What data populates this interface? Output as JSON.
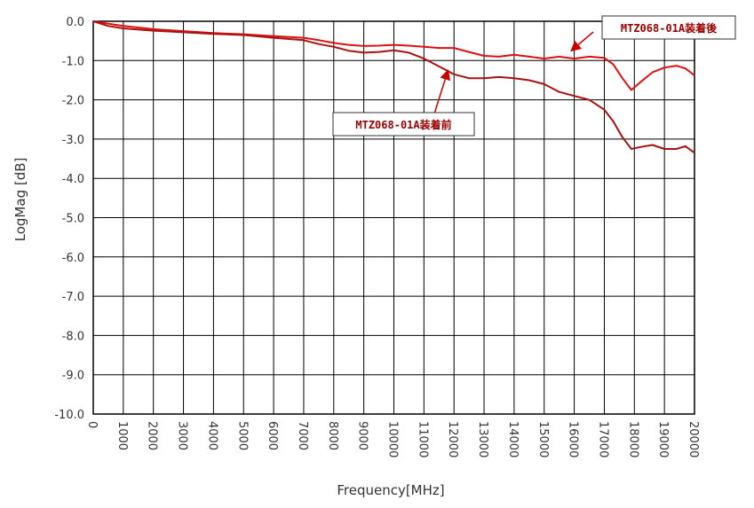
{
  "chart_data": {
    "type": "line",
    "xlabel": "Frequency[MHz]",
    "ylabel": "LogMag [dB]",
    "xlim": [
      0,
      20000
    ],
    "ylim": [
      -10,
      0
    ],
    "x_ticks": [
      0,
      1000,
      2000,
      3000,
      4000,
      5000,
      6000,
      7000,
      8000,
      9000,
      10000,
      11000,
      12000,
      13000,
      14000,
      15000,
      16000,
      17000,
      18000,
      19000,
      20000
    ],
    "y_ticks": [
      "0.0",
      "-1.0",
      "-2.0",
      "-3.0",
      "-4.0",
      "-5.0",
      "-6.0",
      "-7.0",
      "-8.0",
      "-9.0",
      "-10.0"
    ],
    "grid": true,
    "series": [
      {
        "name": "MTZ068-01A装着後",
        "color": "#dd1111",
        "x": [
          0,
          500,
          1000,
          2000,
          3000,
          4000,
          5000,
          6000,
          7000,
          7500,
          8000,
          8500,
          9000,
          9500,
          10000,
          10500,
          11000,
          11500,
          12000,
          12500,
          13000,
          13500,
          14000,
          14500,
          15000,
          15500,
          16000,
          16500,
          17000,
          17300,
          17600,
          17900,
          18200,
          18600,
          19000,
          19400,
          19700,
          20000
        ],
        "y": [
          0.0,
          -0.06,
          -0.12,
          -0.2,
          -0.25,
          -0.3,
          -0.33,
          -0.38,
          -0.42,
          -0.48,
          -0.55,
          -0.6,
          -0.63,
          -0.62,
          -0.6,
          -0.62,
          -0.65,
          -0.68,
          -0.68,
          -0.78,
          -0.88,
          -0.9,
          -0.85,
          -0.9,
          -0.95,
          -0.9,
          -0.95,
          -0.9,
          -0.93,
          -1.1,
          -1.45,
          -1.75,
          -1.55,
          -1.3,
          -1.18,
          -1.13,
          -1.2,
          -1.38
        ]
      },
      {
        "name": "MTZ068-01A装着前",
        "color": "#aa1111",
        "x": [
          0,
          500,
          1000,
          2000,
          3000,
          4000,
          5000,
          6000,
          7000,
          7500,
          8000,
          8500,
          9000,
          9500,
          10000,
          10500,
          11000,
          11500,
          12000,
          12500,
          13000,
          13500,
          14000,
          14500,
          15000,
          15500,
          16000,
          16500,
          17000,
          17300,
          17600,
          17900,
          18200,
          18600,
          19000,
          19400,
          19700,
          20000
        ],
        "y": [
          0.0,
          -0.12,
          -0.18,
          -0.24,
          -0.28,
          -0.32,
          -0.35,
          -0.42,
          -0.48,
          -0.58,
          -0.65,
          -0.75,
          -0.8,
          -0.78,
          -0.74,
          -0.8,
          -0.95,
          -1.15,
          -1.35,
          -1.45,
          -1.45,
          -1.42,
          -1.45,
          -1.5,
          -1.6,
          -1.8,
          -1.9,
          -2.0,
          -2.25,
          -2.55,
          -2.95,
          -3.25,
          -3.2,
          -3.15,
          -3.25,
          -3.25,
          -3.18,
          -3.35
        ]
      }
    ],
    "annotations": [
      {
        "text": "MTZ068-01A装着後",
        "series": 0,
        "arrow_to": {
          "x": 15900,
          "y": -0.75
        },
        "placement": "top-right"
      },
      {
        "text": "MTZ068-01A装着前",
        "series": 1,
        "arrow_to": {
          "x": 11800,
          "y": -1.25
        },
        "placement": "center"
      }
    ]
  }
}
